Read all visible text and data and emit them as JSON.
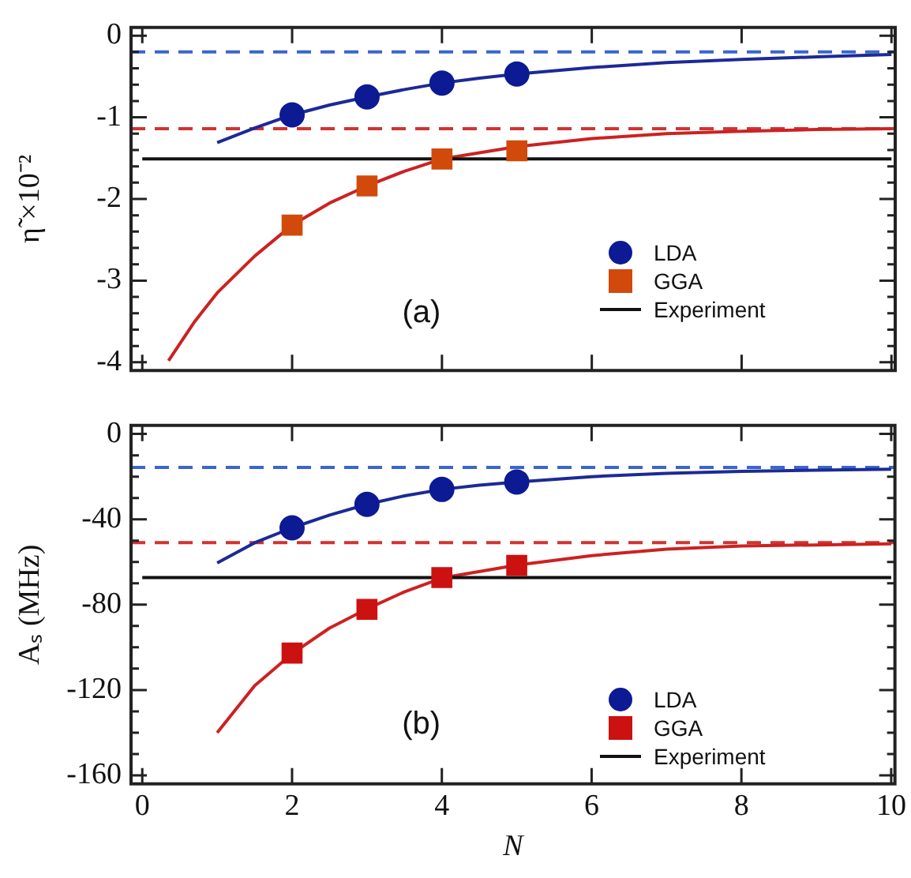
{
  "chart_data": [
    {
      "type": "scatter",
      "ylabel": "η̃ ×10⁻²",
      "xlim": [
        -0.15,
        10.05
      ],
      "ylim": [
        -4.1,
        0.1
      ],
      "xticks": [
        0,
        2,
        4,
        6,
        8,
        10
      ],
      "yticks": [
        0,
        {
          "value": -0.2,
          "label": null
        },
        {
          "value": -0.4,
          "label": null
        },
        {
          "value": -0.6,
          "label": null
        },
        {
          "value": -0.8,
          "label": null
        },
        -1,
        {
          "value": -1.2,
          "label": null
        },
        {
          "value": -1.4,
          "label": null
        },
        {
          "value": -1.6,
          "label": null
        },
        {
          "value": -1.8,
          "label": null
        },
        -2,
        {
          "value": -2.2,
          "label": null
        },
        {
          "value": -2.4,
          "label": null
        },
        {
          "value": -2.6,
          "label": null
        },
        {
          "value": -2.8,
          "label": null
        },
        -3,
        {
          "value": -3.2,
          "label": null
        },
        {
          "value": -3.4,
          "label": null
        },
        {
          "value": -3.6,
          "label": null
        },
        {
          "value": -3.8,
          "label": null
        },
        -4
      ],
      "tick_labels": "y",
      "legend": "right",
      "annotations": [
        "(a)"
      ],
      "series": [
        {
          "name": "LDA",
          "color": "#0c1a94",
          "marker": "circle",
          "x": [
            2,
            3,
            4,
            5
          ],
          "values": [
            -0.97,
            -0.75,
            -0.58,
            -0.47
          ]
        },
        {
          "name": "GGA",
          "color": "#d14a0c",
          "marker": "square",
          "x": [
            2,
            3,
            4,
            5
          ],
          "values": [
            -2.32,
            -1.84,
            -1.51,
            -1.41
          ]
        },
        {
          "type": "line",
          "name": "Experiment",
          "color": "#111111",
          "marker": "none",
          "x": [
            0,
            10
          ],
          "values": [
            -1.51,
            -1.51
          ]
        },
        {
          "type": "line",
          "color": "#1c2a96",
          "marker": "none",
          "x": [
            1,
            1.5,
            2,
            2.5,
            3,
            3.5,
            4,
            4.5,
            5,
            6,
            7,
            8,
            9,
            10
          ],
          "values": [
            -1.31,
            -1.13,
            -0.97,
            -0.85,
            -0.75,
            -0.66,
            -0.58,
            -0.52,
            -0.47,
            -0.39,
            -0.33,
            -0.29,
            -0.26,
            -0.23
          ]
        },
        {
          "type": "line",
          "color": "#cc2222",
          "marker": "none",
          "x": [
            0.35,
            0.7,
            1,
            1.5,
            2,
            2.5,
            3,
            3.5,
            4,
            5,
            6,
            7,
            8,
            9,
            10
          ],
          "values": [
            -3.98,
            -3.5,
            -3.15,
            -2.7,
            -2.32,
            -2.05,
            -1.84,
            -1.66,
            -1.51,
            -1.36,
            -1.26,
            -1.2,
            -1.17,
            -1.15,
            -1.14
          ]
        }
      ],
      "ref_lines": [
        {
          "axis": "y",
          "value": -0.2,
          "color": "#3a66cc",
          "line_style": "dashed"
        },
        {
          "axis": "y",
          "value": -1.14,
          "color": "#d03333",
          "line_style": "dashed"
        }
      ]
    },
    {
      "type": "scatter",
      "xlabel": "N",
      "ylabel": "Aₛ (MHz)",
      "xlim": [
        -0.15,
        10.05
      ],
      "ylim": [
        -164,
        4
      ],
      "xticks": [
        0,
        2,
        4,
        6,
        8,
        10
      ],
      "yticks": [
        0,
        {
          "value": -10,
          "label": null
        },
        {
          "value": -20,
          "label": null
        },
        {
          "value": -30,
          "label": null
        },
        -40,
        {
          "value": -50,
          "label": null
        },
        {
          "value": -60,
          "label": null
        },
        {
          "value": -70,
          "label": null
        },
        -80,
        {
          "value": -90,
          "label": null
        },
        {
          "value": -100,
          "label": null
        },
        {
          "value": -110,
          "label": null
        },
        -120,
        {
          "value": -130,
          "label": null
        },
        {
          "value": -140,
          "label": null
        },
        {
          "value": -150,
          "label": null
        },
        -160
      ],
      "legend": "right",
      "annotations": [
        "(b)"
      ],
      "series": [
        {
          "name": "LDA",
          "color": "#0c1a94",
          "marker": "circle",
          "x": [
            2,
            3,
            4,
            5
          ],
          "values": [
            -44,
            -33,
            -26,
            -22.5
          ]
        },
        {
          "name": "GGA",
          "color": "#cc1111",
          "marker": "square",
          "x": [
            2,
            3,
            4,
            5
          ],
          "values": [
            -102.7,
            -82.2,
            -67.3,
            -61.6
          ]
        },
        {
          "type": "line",
          "name": "Experiment",
          "color": "#111111",
          "marker": "none",
          "x": [
            0,
            10
          ],
          "values": [
            -67.3,
            -67.3
          ]
        },
        {
          "type": "line",
          "color": "#1c2a96",
          "marker": "none",
          "x": [
            1,
            1.5,
            2,
            2.5,
            3,
            3.5,
            4,
            4.5,
            5,
            6,
            7,
            8,
            9,
            10
          ],
          "values": [
            -60.5,
            -51,
            -44,
            -38,
            -33,
            -29,
            -26,
            -24,
            -22.5,
            -20,
            -18.5,
            -17.5,
            -17,
            -16.5
          ]
        },
        {
          "type": "line",
          "color": "#cc2222",
          "marker": "none",
          "x": [
            1,
            1.5,
            2,
            2.5,
            3,
            3.5,
            4,
            5,
            6,
            7,
            8,
            9,
            10
          ],
          "values": [
            -140,
            -118,
            -103,
            -91,
            -82,
            -74,
            -67.5,
            -61.5,
            -57,
            -54,
            -52.5,
            -52,
            -51.5
          ]
        }
      ],
      "ref_lines": [
        {
          "axis": "y",
          "value": -15.7,
          "color": "#3a66cc",
          "line_style": "dashed"
        },
        {
          "axis": "y",
          "value": -50.9,
          "color": "#d03333",
          "line_style": "dashed"
        }
      ]
    }
  ]
}
